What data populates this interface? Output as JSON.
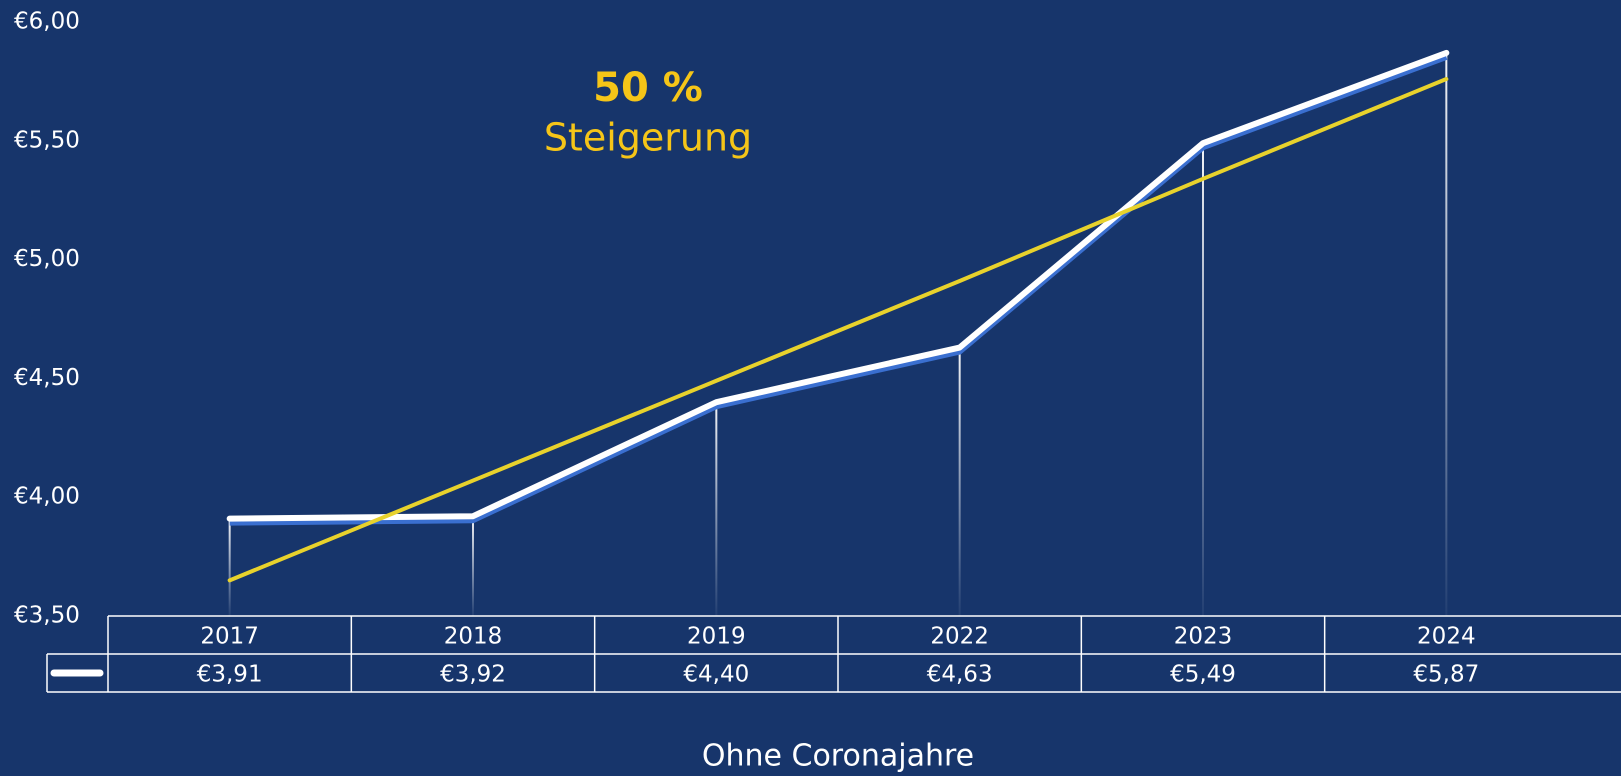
{
  "chart_data": {
    "type": "line",
    "categories": [
      "2017",
      "2018",
      "2019",
      "2022",
      "2023",
      "2024"
    ],
    "series": [
      {
        "color": "#ffffff",
        "shadow_color": "#3a6fd0",
        "values": [
          3.91,
          3.92,
          4.4,
          4.63,
          5.49,
          5.87
        ],
        "value_labels": [
          "€3,91",
          "€3,92",
          "€4,40",
          "€4,63",
          "€5,49",
          "€5,87"
        ]
      },
      {
        "color": "#e8d22c",
        "values": [
          3.65,
          4.07,
          4.49,
          4.91,
          5.34,
          5.76
        ]
      }
    ],
    "ylim": [
      3.5,
      6
    ],
    "yticks": [
      {
        "value": 3.5,
        "label": "€3,50"
      },
      {
        "value": 4,
        "label": "€4,00"
      },
      {
        "value": 4.5,
        "label": "€4,50"
      },
      {
        "value": 5,
        "label": "€5,00"
      },
      {
        "value": 5.5,
        "label": "€5,50"
      },
      {
        "value": 6,
        "label": "€6,00"
      }
    ],
    "annotation": {
      "lines": [
        "50 %",
        "Steigerung"
      ],
      "color": "#f5c518"
    },
    "xlabel": "Ohne Coronajahre",
    "data_table": true
  }
}
